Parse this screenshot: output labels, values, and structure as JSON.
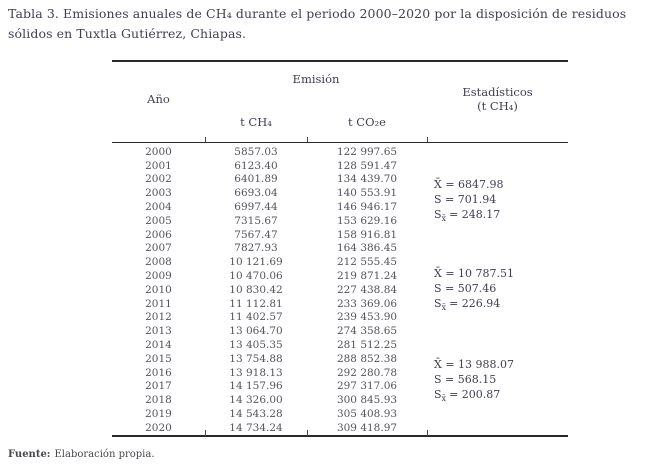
{
  "title": "Tabla 3. Emisiones anuales de CH₄ durante el periodo 2000–2020 por la disposición de residuos sólidos en Tuxtla Gutiérrez, Chiapas.",
  "table": {
    "header": {
      "year": "Año",
      "emission_group": "Emisión",
      "ch4": "t CH₄",
      "co2e": "t CO₂e",
      "stats_line1": "Estadísticos",
      "stats_line2": "(t CH₄)"
    },
    "rows": [
      {
        "year": "2000",
        "ch4": "5857.03",
        "co2e": "122 997.65"
      },
      {
        "year": "2001",
        "ch4": "6123.40",
        "co2e": "128 591.47"
      },
      {
        "year": "2002",
        "ch4": "6401.89",
        "co2e": "134 439.70"
      },
      {
        "year": "2003",
        "ch4": "6693.04",
        "co2e": "140 553.91"
      },
      {
        "year": "2004",
        "ch4": "6997.44",
        "co2e": "146 946.17"
      },
      {
        "year": "2005",
        "ch4": "7315.67",
        "co2e": "153 629.16"
      },
      {
        "year": "2006",
        "ch4": "7567.47",
        "co2e": "158 916.81"
      },
      {
        "year": "2007",
        "ch4": "7827.93",
        "co2e": "164 386.45"
      },
      {
        "year": "2008",
        "ch4": "10 121.69",
        "co2e": "212 555.45"
      },
      {
        "year": "2009",
        "ch4": "10 470.06",
        "co2e": "219 871.24"
      },
      {
        "year": "2010",
        "ch4": "10 830.42",
        "co2e": "227 438.84"
      },
      {
        "year": "2011",
        "ch4": "11 112.81",
        "co2e": "233 369.06"
      },
      {
        "year": "2012",
        "ch4": "11 402.57",
        "co2e": "239 453.90"
      },
      {
        "year": "2013",
        "ch4": "13 064.70",
        "co2e": "274 358.65"
      },
      {
        "year": "2014",
        "ch4": "13 405.35",
        "co2e": "281 512.25"
      },
      {
        "year": "2015",
        "ch4": "13 754.88",
        "co2e": "288 852.38"
      },
      {
        "year": "2016",
        "ch4": "13 918.13",
        "co2e": "292 280.78"
      },
      {
        "year": "2017",
        "ch4": "14 157.96",
        "co2e": "297 317.06"
      },
      {
        "year": "2018",
        "ch4": "14 326.00",
        "co2e": "300 845.93"
      },
      {
        "year": "2019",
        "ch4": "14 543.28",
        "co2e": "305 408.93"
      },
      {
        "year": "2020",
        "ch4": "14 734.24",
        "co2e": "309 418.97"
      }
    ]
  },
  "stats_blocks": [
    {
      "mean": "X̄ = 6847.98",
      "s": "S = 701.94",
      "sx_main": "S",
      "sx_sub": "x̄",
      "sx_value": "= 248.17"
    },
    {
      "mean": "X̄ = 10 787.51",
      "s": "S = 507.46",
      "sx_main": "S",
      "sx_sub": "x̄",
      "sx_value": "= 226.94"
    },
    {
      "mean": "X̄ = 13 988.07",
      "s": "S = 568.15",
      "sx_main": "S",
      "sx_sub": "x̄",
      "sx_value": "= 200.87"
    }
  ],
  "footer": {
    "label": "Fuente:",
    "text": "Elaboración propia."
  }
}
